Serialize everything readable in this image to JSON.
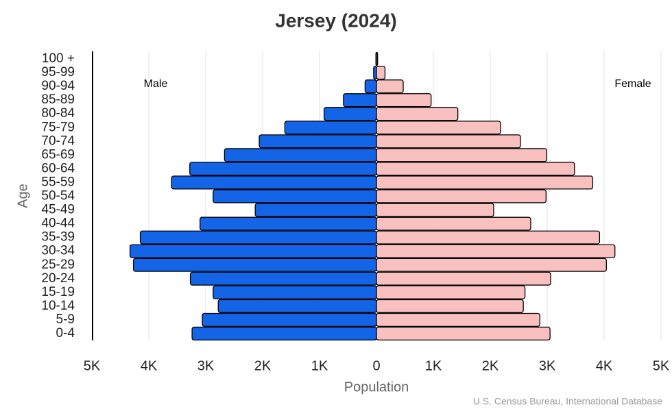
{
  "chart_data": {
    "type": "pyramid",
    "title": "Jersey (2024)",
    "x_label": "Population",
    "y_label": "Age",
    "source": "U.S. Census Bureau, International Database",
    "categories": [
      "0-4",
      "5-9",
      "10-14",
      "15-19",
      "20-24",
      "25-29",
      "30-34",
      "35-39",
      "40-44",
      "45-49",
      "50-54",
      "55-59",
      "60-64",
      "65-69",
      "70-74",
      "75-79",
      "80-84",
      "85-89",
      "90-94",
      "95-99",
      "100 +"
    ],
    "series": [
      {
        "name": "Male",
        "color": "#1464e8",
        "values": [
          -3240,
          -3060,
          -2780,
          -2870,
          -3270,
          -4270,
          -4330,
          -4150,
          -3100,
          -2130,
          -2870,
          -3600,
          -3280,
          -2670,
          -2060,
          -1610,
          -920,
          -580,
          -200,
          -50,
          -10
        ]
      },
      {
        "name": "Female",
        "color": "#f9c0c0",
        "values": [
          3050,
          2870,
          2580,
          2610,
          3060,
          4040,
          4190,
          3920,
          2710,
          2060,
          2980,
          3800,
          3480,
          2990,
          2530,
          2180,
          1430,
          960,
          470,
          150,
          20
        ]
      }
    ],
    "xlim": [
      -5000,
      5000
    ],
    "xticks": [
      {
        "value": -5000,
        "label": "5K"
      },
      {
        "value": -4000,
        "label": "4K"
      },
      {
        "value": -3000,
        "label": "3K"
      },
      {
        "value": -2000,
        "label": "2K"
      },
      {
        "value": -1000,
        "label": "1K"
      },
      0,
      {
        "value": 1000,
        "label": "1K"
      },
      {
        "value": 2000,
        "label": "2K"
      },
      {
        "value": 3000,
        "label": "3K"
      },
      {
        "value": 4000,
        "label": "4K"
      },
      {
        "value": 5000,
        "label": "5K"
      }
    ],
    "grid": true
  }
}
